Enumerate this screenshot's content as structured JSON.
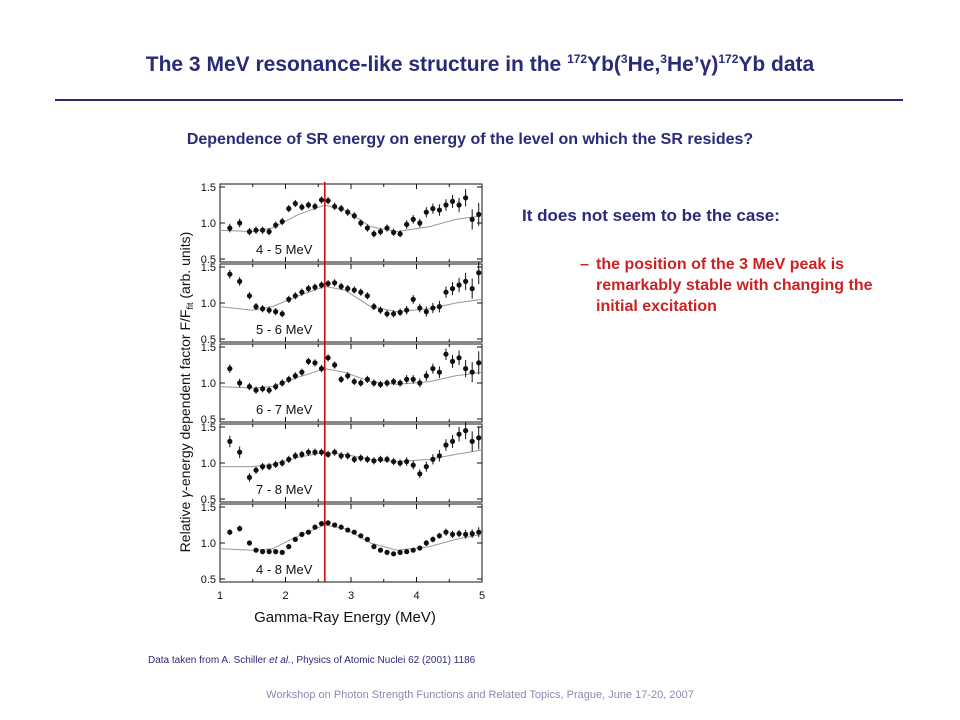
{
  "slide": {
    "title_parts": [
      "The 3 MeV resonance-like structure in the ",
      "172",
      "Yb(",
      "3",
      "He,",
      "3",
      "He’γ)",
      "172",
      "Yb data"
    ],
    "subtitle": "Dependence of SR energy on energy of the level on which the SR resides?",
    "lead": "It does not seem to be the case:",
    "bullet_dash": "–",
    "bullet": "the position of the 3 MeV peak is remarkably stable with changing the initial excitation",
    "citation_prefix": "Data taken from A. Schiller ",
    "citation_etal": "et al.",
    "citation_suffix": ", Physics of Atomic Nuclei 62 (2001) 1186",
    "footer": "Workshop on Photon Strength Functions and Related Topics, Prague, June 17-20, 2007"
  },
  "colors": {
    "title": "#2a2a7a",
    "accent_red": "#cc2222",
    "marker_line": "#cc0000",
    "fit_curve": "#999999"
  },
  "chart_data": {
    "type": "scatter",
    "xlabel": "Gamma-Ray Energy (MeV)",
    "ylabel": "Relative γ-energy dependent factor F/F_fit (arb. units)",
    "ylabel_parts": [
      "Relative ",
      "γ",
      "-energy dependent factor F/F",
      "fit",
      " (arb. units)"
    ],
    "xlim": [
      1,
      5
    ],
    "ylim": [
      0.5,
      1.5
    ],
    "xticks": [
      "1",
      "2",
      "3",
      "4",
      "5"
    ],
    "yticks": [
      "0.5",
      "1.0",
      "1.5"
    ],
    "reference_line_x": 2.6,
    "panels": [
      {
        "label": "4 - 5 MeV",
        "x": [
          1.15,
          1.3,
          1.45,
          1.55,
          1.65,
          1.75,
          1.85,
          1.95,
          2.05,
          2.15,
          2.25,
          2.35,
          2.45,
          2.55,
          2.65,
          2.75,
          2.85,
          2.95,
          3.05,
          3.15,
          3.25,
          3.35,
          3.45,
          3.55,
          3.65,
          3.75,
          3.85,
          3.95,
          4.05,
          4.15,
          4.25,
          4.35,
          4.45,
          4.55,
          4.65,
          4.75,
          4.85,
          4.95
        ],
        "y": [
          0.93,
          1.0,
          0.88,
          0.9,
          0.9,
          0.88,
          0.97,
          1.02,
          1.2,
          1.27,
          1.22,
          1.25,
          1.23,
          1.32,
          1.31,
          1.23,
          1.2,
          1.15,
          1.1,
          1.0,
          0.93,
          0.85,
          0.88,
          0.93,
          0.87,
          0.85,
          0.98,
          1.05,
          1.0,
          1.15,
          1.2,
          1.18,
          1.25,
          1.3,
          1.25,
          1.35,
          1.05,
          1.12
        ],
        "err": [
          0.06,
          0.06,
          0.05,
          0.05,
          0.05,
          0.05,
          0.05,
          0.05,
          0.05,
          0.05,
          0.05,
          0.05,
          0.05,
          0.05,
          0.05,
          0.05,
          0.05,
          0.05,
          0.05,
          0.05,
          0.05,
          0.05,
          0.05,
          0.05,
          0.05,
          0.05,
          0.06,
          0.06,
          0.06,
          0.07,
          0.07,
          0.08,
          0.08,
          0.09,
          0.1,
          0.12,
          0.14,
          0.16
        ],
        "fit": [
          [
            1.0,
            0.9
          ],
          [
            1.5,
            0.88
          ],
          [
            1.8,
            0.93
          ],
          [
            2.2,
            1.12
          ],
          [
            2.6,
            1.25
          ],
          [
            2.9,
            1.18
          ],
          [
            3.3,
            0.95
          ],
          [
            3.7,
            0.88
          ],
          [
            4.2,
            0.95
          ],
          [
            4.6,
            1.05
          ],
          [
            5.0,
            1.1
          ]
        ]
      },
      {
        "label": "5 - 6 MeV",
        "x": [
          1.15,
          1.3,
          1.45,
          1.55,
          1.65,
          1.75,
          1.85,
          1.95,
          2.05,
          2.15,
          2.25,
          2.35,
          2.45,
          2.55,
          2.65,
          2.75,
          2.85,
          2.95,
          3.05,
          3.15,
          3.25,
          3.35,
          3.45,
          3.55,
          3.65,
          3.75,
          3.85,
          3.95,
          4.05,
          4.15,
          4.25,
          4.35,
          4.45,
          4.55,
          4.65,
          4.75,
          4.85,
          4.95
        ],
        "y": [
          1.4,
          1.3,
          1.1,
          0.95,
          0.92,
          0.9,
          0.88,
          0.85,
          1.05,
          1.1,
          1.15,
          1.2,
          1.22,
          1.25,
          1.27,
          1.28,
          1.23,
          1.2,
          1.18,
          1.15,
          1.1,
          0.95,
          0.9,
          0.85,
          0.85,
          0.87,
          0.9,
          1.05,
          0.93,
          0.88,
          0.93,
          0.95,
          1.15,
          1.2,
          1.25,
          1.3,
          1.2,
          1.42
        ],
        "err": [
          0.06,
          0.06,
          0.05,
          0.05,
          0.05,
          0.05,
          0.05,
          0.05,
          0.05,
          0.05,
          0.05,
          0.05,
          0.05,
          0.05,
          0.05,
          0.05,
          0.05,
          0.05,
          0.05,
          0.05,
          0.05,
          0.05,
          0.05,
          0.05,
          0.05,
          0.05,
          0.06,
          0.06,
          0.06,
          0.07,
          0.07,
          0.08,
          0.08,
          0.09,
          0.1,
          0.12,
          0.14,
          0.16
        ],
        "fit": [
          [
            1.0,
            0.95
          ],
          [
            1.5,
            0.9
          ],
          [
            1.8,
            0.95
          ],
          [
            2.2,
            1.1
          ],
          [
            2.6,
            1.23
          ],
          [
            2.9,
            1.18
          ],
          [
            3.3,
            0.95
          ],
          [
            3.7,
            0.88
          ],
          [
            4.2,
            0.92
          ],
          [
            4.6,
            1.0
          ],
          [
            5.0,
            1.05
          ]
        ]
      },
      {
        "label": "6 - 7 MeV",
        "x": [
          1.15,
          1.3,
          1.45,
          1.55,
          1.65,
          1.75,
          1.85,
          1.95,
          2.05,
          2.15,
          2.25,
          2.35,
          2.45,
          2.55,
          2.65,
          2.75,
          2.85,
          2.95,
          3.05,
          3.15,
          3.25,
          3.35,
          3.45,
          3.55,
          3.65,
          3.75,
          3.85,
          3.95,
          4.05,
          4.15,
          4.25,
          4.35,
          4.45,
          4.55,
          4.65,
          4.75,
          4.85,
          4.95
        ],
        "y": [
          1.2,
          1.0,
          0.95,
          0.9,
          0.92,
          0.9,
          0.95,
          1.0,
          1.05,
          1.1,
          1.15,
          1.3,
          1.28,
          1.2,
          1.35,
          1.25,
          1.05,
          1.1,
          1.02,
          1.0,
          1.05,
          1.0,
          0.98,
          1.0,
          1.02,
          1.0,
          1.05,
          1.05,
          1.0,
          1.1,
          1.2,
          1.15,
          1.4,
          1.3,
          1.35,
          1.2,
          1.15,
          1.28
        ],
        "err": [
          0.06,
          0.06,
          0.05,
          0.05,
          0.05,
          0.05,
          0.05,
          0.05,
          0.05,
          0.05,
          0.05,
          0.05,
          0.05,
          0.05,
          0.05,
          0.05,
          0.05,
          0.05,
          0.05,
          0.05,
          0.05,
          0.05,
          0.05,
          0.05,
          0.05,
          0.05,
          0.06,
          0.06,
          0.06,
          0.07,
          0.07,
          0.08,
          0.08,
          0.09,
          0.1,
          0.12,
          0.14,
          0.16
        ],
        "fit": [
          [
            1.0,
            0.95
          ],
          [
            1.5,
            0.93
          ],
          [
            1.8,
            0.95
          ],
          [
            2.2,
            1.08
          ],
          [
            2.6,
            1.2
          ],
          [
            2.9,
            1.15
          ],
          [
            3.3,
            1.02
          ],
          [
            3.7,
            0.98
          ],
          [
            4.2,
            1.02
          ],
          [
            4.6,
            1.1
          ],
          [
            5.0,
            1.15
          ]
        ]
      },
      {
        "label": "7 - 8 MeV",
        "x": [
          1.15,
          1.3,
          1.45,
          1.55,
          1.65,
          1.75,
          1.85,
          1.95,
          2.05,
          2.15,
          2.25,
          2.35,
          2.45,
          2.55,
          2.65,
          2.75,
          2.85,
          2.95,
          3.05,
          3.15,
          3.25,
          3.35,
          3.45,
          3.55,
          3.65,
          3.75,
          3.85,
          3.95,
          4.05,
          4.15,
          4.25,
          4.35,
          4.45,
          4.55,
          4.65,
          4.75,
          4.85,
          4.95
        ],
        "y": [
          1.3,
          1.15,
          0.8,
          0.9,
          0.95,
          0.95,
          0.98,
          1.0,
          1.05,
          1.1,
          1.12,
          1.15,
          1.15,
          1.15,
          1.12,
          1.15,
          1.1,
          1.1,
          1.05,
          1.07,
          1.05,
          1.03,
          1.05,
          1.05,
          1.02,
          1.0,
          1.02,
          0.97,
          0.85,
          0.95,
          1.05,
          1.1,
          1.25,
          1.3,
          1.4,
          1.45,
          1.3,
          1.35
        ],
        "err": [
          0.08,
          0.08,
          0.06,
          0.05,
          0.05,
          0.05,
          0.05,
          0.05,
          0.05,
          0.05,
          0.05,
          0.05,
          0.05,
          0.05,
          0.05,
          0.05,
          0.05,
          0.05,
          0.05,
          0.05,
          0.05,
          0.05,
          0.05,
          0.05,
          0.05,
          0.05,
          0.06,
          0.06,
          0.06,
          0.07,
          0.07,
          0.08,
          0.08,
          0.09,
          0.1,
          0.12,
          0.14,
          0.16
        ],
        "fit": [
          [
            1.0,
            0.95
          ],
          [
            1.5,
            0.95
          ],
          [
            1.8,
            0.98
          ],
          [
            2.2,
            1.08
          ],
          [
            2.6,
            1.15
          ],
          [
            2.9,
            1.12
          ],
          [
            3.3,
            1.05
          ],
          [
            3.7,
            1.02
          ],
          [
            4.2,
            1.05
          ],
          [
            4.6,
            1.12
          ],
          [
            5.0,
            1.18
          ]
        ]
      },
      {
        "label": "4 - 8 MeV",
        "x": [
          1.15,
          1.3,
          1.45,
          1.55,
          1.65,
          1.75,
          1.85,
          1.95,
          2.05,
          2.15,
          2.25,
          2.35,
          2.45,
          2.55,
          2.65,
          2.75,
          2.85,
          2.95,
          3.05,
          3.15,
          3.25,
          3.35,
          3.45,
          3.55,
          3.65,
          3.75,
          3.85,
          3.95,
          4.05,
          4.15,
          4.25,
          4.35,
          4.45,
          4.55,
          4.65,
          4.75,
          4.85,
          4.95
        ],
        "y": [
          1.15,
          1.2,
          1.0,
          0.9,
          0.88,
          0.88,
          0.88,
          0.87,
          0.95,
          1.05,
          1.12,
          1.15,
          1.22,
          1.27,
          1.28,
          1.25,
          1.22,
          1.18,
          1.15,
          1.1,
          1.05,
          0.95,
          0.9,
          0.87,
          0.85,
          0.87,
          0.88,
          0.9,
          0.93,
          1.0,
          1.05,
          1.1,
          1.15,
          1.12,
          1.13,
          1.12,
          1.13,
          1.15
        ],
        "err": [
          0.04,
          0.04,
          0.03,
          0.03,
          0.03,
          0.03,
          0.03,
          0.03,
          0.03,
          0.03,
          0.03,
          0.03,
          0.03,
          0.03,
          0.03,
          0.03,
          0.03,
          0.03,
          0.03,
          0.03,
          0.03,
          0.03,
          0.03,
          0.03,
          0.03,
          0.03,
          0.03,
          0.03,
          0.03,
          0.04,
          0.04,
          0.04,
          0.05,
          0.05,
          0.05,
          0.06,
          0.06,
          0.07
        ],
        "fit": [
          [
            1.0,
            0.92
          ],
          [
            1.5,
            0.9
          ],
          [
            1.8,
            0.92
          ],
          [
            2.2,
            1.1
          ],
          [
            2.6,
            1.25
          ],
          [
            2.9,
            1.2
          ],
          [
            3.3,
            1.0
          ],
          [
            3.7,
            0.9
          ],
          [
            4.2,
            0.95
          ],
          [
            4.6,
            1.05
          ],
          [
            5.0,
            1.12
          ]
        ]
      }
    ]
  }
}
